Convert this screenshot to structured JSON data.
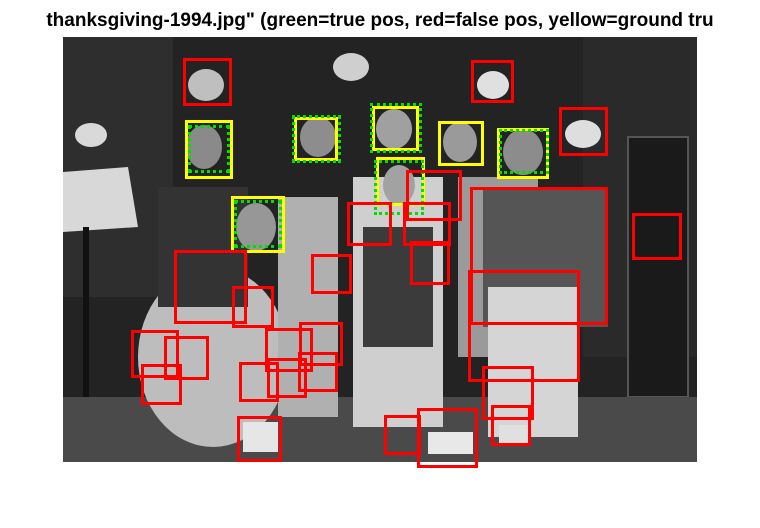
{
  "figure": {
    "title": "thanksgiving-1994.jpg\" (green=true pos, red=false pos, yellow=ground tru"
  },
  "colors": {
    "true_pos": "#00e000",
    "false_pos": "#ff0000",
    "ground_truth": "#ffff00"
  },
  "image": {
    "description_icon": "grayscale-group-photo"
  }
}
